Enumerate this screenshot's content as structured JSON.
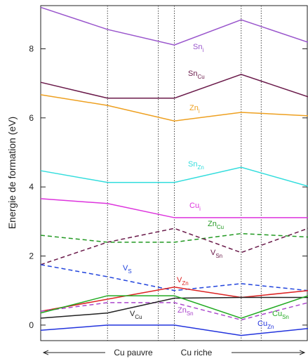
{
  "chart_data": {
    "type": "line",
    "ylabel": "Energie de formation (eV)",
    "x": [
      0,
      1,
      2,
      3,
      4
    ],
    "xlim": [
      0,
      4
    ],
    "ylim": [
      -0.45,
      9.25
    ],
    "yticks": [
      0,
      2,
      4,
      6,
      8
    ],
    "vlines": [
      1,
      1.76,
      2,
      3,
      3.3
    ],
    "left_region": "Cu pauvre",
    "right_region": "Cu riche",
    "series": [
      {
        "name": "Sn",
        "sub": "i",
        "color": "#9955cc",
        "dashed": false,
        "values": [
          9.2,
          8.56,
          8.11,
          8.84,
          8.19
        ]
      },
      {
        "name": "Sn",
        "sub": "Cu",
        "color": "#6a1a4a",
        "dashed": false,
        "values": [
          7.03,
          6.57,
          6.57,
          7.26,
          6.61
        ]
      },
      {
        "name": "Zn",
        "sub": "i",
        "color": "#eea020",
        "dashed": false,
        "values": [
          6.67,
          6.36,
          5.91,
          6.16,
          6.06
        ]
      },
      {
        "name": "Sn",
        "sub": "Zn",
        "color": "#33dddd",
        "dashed": false,
        "values": [
          4.47,
          4.13,
          4.13,
          4.57,
          4.02
        ]
      },
      {
        "name": "Cu",
        "sub": "i",
        "color": "#dd33dd",
        "dashed": false,
        "values": [
          3.66,
          3.52,
          3.11,
          3.11,
          3.11
        ]
      },
      {
        "name": "Zn",
        "sub": "Cu",
        "color": "#229922",
        "dashed": true,
        "values": [
          2.6,
          2.4,
          2.4,
          2.65,
          2.55
        ]
      },
      {
        "name": "V",
        "sub": "Sn",
        "color": "#6a1a4a",
        "dashed": true,
        "values": [
          1.75,
          2.4,
          2.8,
          2.1,
          2.8
        ]
      },
      {
        "name": "V",
        "sub": "S",
        "color": "#2244dd",
        "dashed": true,
        "values": [
          1.75,
          1.4,
          1.0,
          1.2,
          1.0
        ]
      },
      {
        "name": "V",
        "sub": "Zn",
        "color": "#dd2222",
        "dashed": false,
        "values": [
          0.4,
          0.75,
          1.1,
          0.8,
          1.0
        ]
      },
      {
        "name": "Zn",
        "sub": "Sn",
        "color": "#aa44cc",
        "dashed": true,
        "values": [
          0.4,
          0.65,
          0.65,
          0.15,
          0.65
        ]
      },
      {
        "name": "V",
        "sub": "Cu",
        "color": "#222222",
        "dashed": false,
        "values": [
          0.2,
          0.35,
          0.78,
          0.8,
          0.8
        ]
      },
      {
        "name": "Cu",
        "sub": "Sn",
        "color": "#22aa22",
        "dashed": false,
        "values": [
          0.35,
          0.85,
          0.85,
          0.2,
          0.85
        ]
      },
      {
        "name": "Cu",
        "sub": "Zn",
        "color": "#2233dd",
        "dashed": false,
        "values": [
          -0.15,
          0,
          0,
          -0.3,
          -0.1
        ]
      }
    ]
  }
}
